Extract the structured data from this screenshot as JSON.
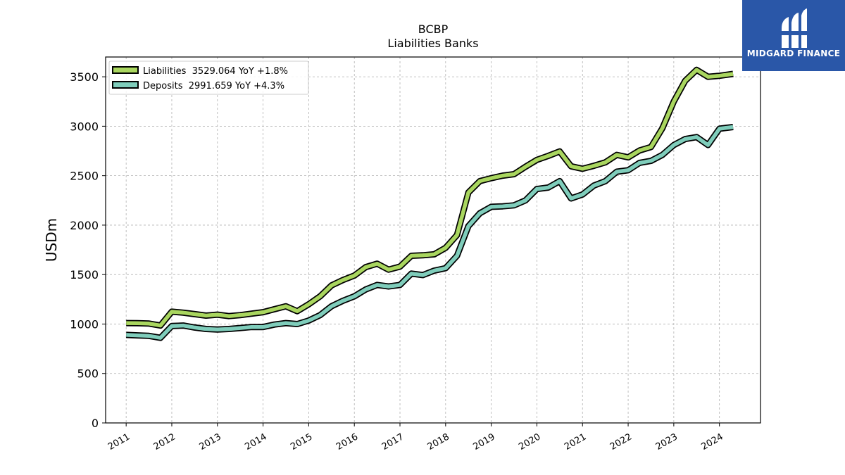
{
  "logo": {
    "text": "MIDGARD FINANCE",
    "icon": "midgard-logo-icon",
    "color": "#2a57a8"
  },
  "chart_data": {
    "type": "line",
    "title": "BCBP",
    "subtitle": "Liabilities Banks",
    "ylabel": "USDm",
    "xlabel": "",
    "ylim": [
      0,
      3700
    ],
    "xlim": [
      2010.55,
      2024.9
    ],
    "yticks": [
      0,
      500,
      1000,
      1500,
      2000,
      2500,
      3000,
      3500
    ],
    "xticks": [
      "2011",
      "2012",
      "2013",
      "2014",
      "2015",
      "2016",
      "2017",
      "2018",
      "2019",
      "2020",
      "2021",
      "2022",
      "2023",
      "2024"
    ],
    "grid": true,
    "legend_position": "top-left",
    "x": [
      2011.0,
      2011.25,
      2011.5,
      2011.75,
      2012.0,
      2012.25,
      2012.5,
      2012.75,
      2013.0,
      2013.25,
      2013.5,
      2013.75,
      2014.0,
      2014.25,
      2014.5,
      2014.75,
      2015.0,
      2015.25,
      2015.5,
      2015.75,
      2016.0,
      2016.25,
      2016.5,
      2016.75,
      2017.0,
      2017.25,
      2017.5,
      2017.75,
      2018.0,
      2018.25,
      2018.5,
      2018.75,
      2019.0,
      2019.25,
      2019.5,
      2019.75,
      2020.0,
      2020.25,
      2020.5,
      2020.75,
      2021.0,
      2021.25,
      2021.5,
      2021.75,
      2022.0,
      2022.25,
      2022.5,
      2022.75,
      2023.0,
      2023.25,
      2023.5,
      2023.75,
      2024.0,
      2024.3
    ],
    "series": [
      {
        "name": "Liabilities",
        "legend": "Liabilities  3529.064 YoY +1.8%",
        "color": "#a9d65f",
        "values": [
          1010,
          1008,
          1005,
          985,
          1125,
          1115,
          1100,
          1085,
          1095,
          1080,
          1090,
          1105,
          1120,
          1150,
          1180,
          1130,
          1200,
          1280,
          1390,
          1445,
          1490,
          1575,
          1610,
          1550,
          1580,
          1690,
          1695,
          1705,
          1770,
          1900,
          2330,
          2445,
          2475,
          2500,
          2515,
          2590,
          2660,
          2700,
          2745,
          2595,
          2570,
          2600,
          2635,
          2710,
          2685,
          2755,
          2790,
          2980,
          3250,
          3460,
          3570,
          3500,
          3510,
          3529
        ]
      },
      {
        "name": "Deposits",
        "legend": "Deposits  2991.659 YoY +4.3%",
        "color": "#7fcdbb",
        "values": [
          890,
          885,
          880,
          860,
          980,
          985,
          965,
          950,
          945,
          950,
          960,
          970,
          970,
          995,
          1010,
          1000,
          1035,
          1090,
          1180,
          1235,
          1280,
          1350,
          1395,
          1380,
          1395,
          1510,
          1495,
          1540,
          1565,
          1690,
          1990,
          2120,
          2185,
          2190,
          2200,
          2250,
          2365,
          2380,
          2445,
          2270,
          2310,
          2400,
          2445,
          2540,
          2555,
          2630,
          2650,
          2710,
          2810,
          2870,
          2890,
          2810,
          2975,
          2992
        ]
      }
    ]
  }
}
